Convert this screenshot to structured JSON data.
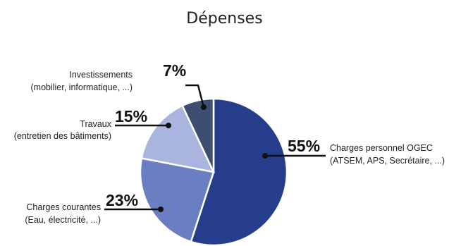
{
  "chart_data": {
    "type": "pie",
    "title": "Dépenses",
    "slices": [
      {
        "pct_label": "55%",
        "value": 55,
        "color": "#263d8c",
        "label_line1": "Charges personnel OGEC",
        "label_line2": "(ATSEM, APS, Secrétaire, ...)"
      },
      {
        "pct_label": "23%",
        "value": 23,
        "color": "#6a7ec2",
        "label_line1": "Charges courantes",
        "label_line2": "(Eau, électricité, ...)"
      },
      {
        "pct_label": "15%",
        "value": 15,
        "color": "#a9b5de",
        "label_line1": "Travaux",
        "label_line2": "(entretien des bâtiments)"
      },
      {
        "pct_label": "7%",
        "value": 7,
        "color": "#3c4f70",
        "label_line1": "Investissements",
        "label_line2": "(mobilier, informatique, ...)"
      }
    ]
  }
}
